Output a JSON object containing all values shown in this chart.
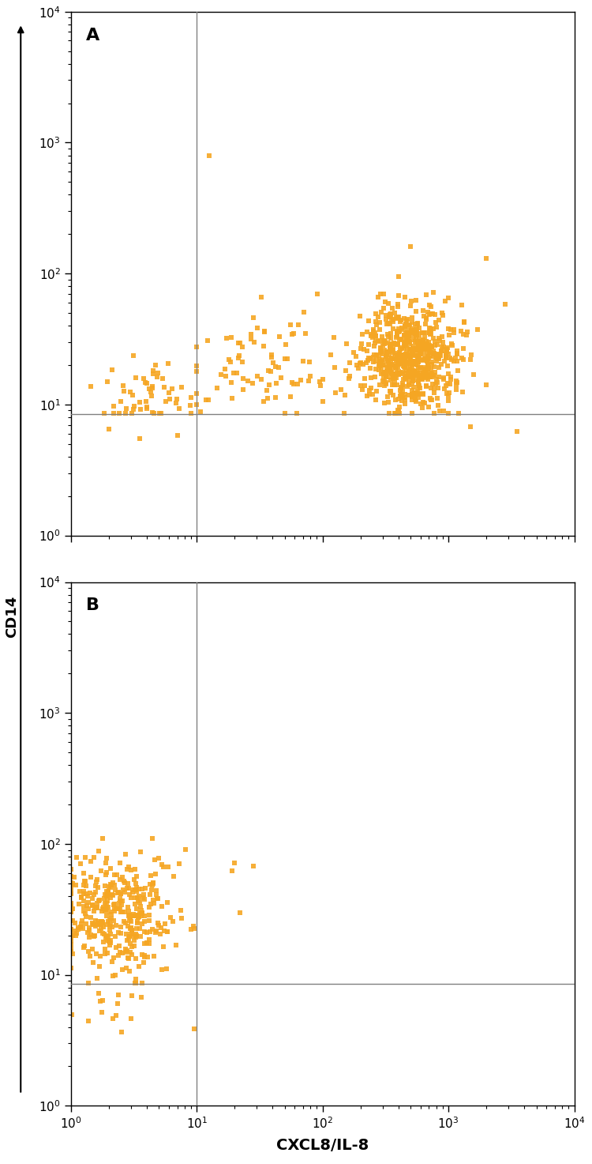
{
  "dot_color": "#F5A623",
  "dot_size": 18,
  "dot_alpha": 0.9,
  "marker": "s",
  "xlim": [
    1,
    10000
  ],
  "ylim": [
    1,
    10000
  ],
  "xlabel": "CXCL8/IL-8",
  "ylabel": "CD14",
  "gate_x": 10,
  "gate_y": 8.5,
  "panel_A_label": "A",
  "panel_B_label": "B",
  "seed_A": 42,
  "seed_B": 99,
  "background_color": "#ffffff",
  "line_color": "#808080",
  "arrow_color": "#000000",
  "xlabel_fontsize": 14,
  "ylabel_fontsize": 13,
  "label_fontsize": 16,
  "tick_fontsize": 11
}
